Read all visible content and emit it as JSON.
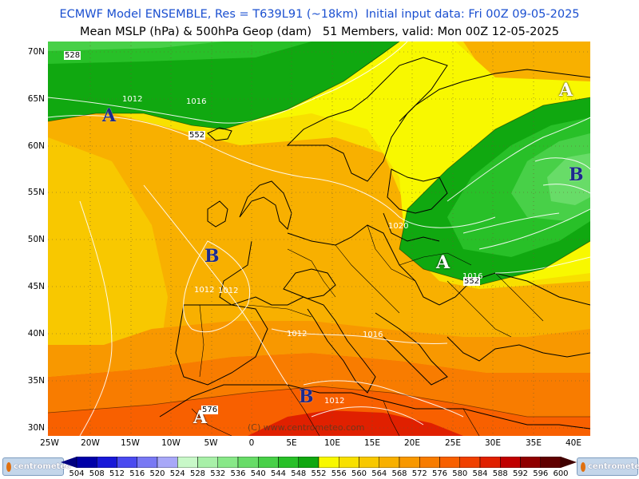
{
  "header": {
    "line1": "ECMWF Model ENSEMBLE, Res = T639L91 (~18km)  Initial input data: Fri 00Z 09-05-2025",
    "line2": "Mean MSLP (hPa) & 500hPa Geop (dam)   51 Members, valid: Mon 00Z 12-05-2025"
  },
  "axes": {
    "lat_labels": [
      "70N",
      "65N",
      "60N",
      "55N",
      "50N",
      "45N",
      "40N",
      "35N",
      "30N"
    ],
    "lon_labels": [
      "25W",
      "20W",
      "15W",
      "10W",
      "5W",
      "0",
      "5E",
      "10E",
      "15E",
      "20E",
      "25E",
      "30E",
      "35E",
      "40E"
    ]
  },
  "pressure_centers": [
    {
      "type": "A",
      "color": "#1c2a8c"
    },
    {
      "type": "A",
      "color": "#ffffff"
    },
    {
      "type": "B",
      "color": "#1c2a8c"
    },
    {
      "type": "A",
      "color": "#ffffff"
    },
    {
      "type": "B",
      "color": "#1c2a8c"
    },
    {
      "type": "A",
      "color": "#ffffff"
    },
    {
      "type": "B",
      "color": "#1c2a8c"
    }
  ],
  "contour_labels": [
    "528",
    "552",
    "552",
    "576",
    "1012",
    "1016",
    "1016",
    "1020",
    "1012",
    "1012",
    "1016",
    "1012",
    "1012"
  ],
  "watermark": "(C) www.centrometeo.com",
  "colorbar": {
    "labels": [
      "504",
      "508",
      "512",
      "516",
      "520",
      "524",
      "528",
      "532",
      "536",
      "540",
      "544",
      "548",
      "552",
      "556",
      "560",
      "564",
      "568",
      "572",
      "576",
      "580",
      "584",
      "588",
      "592",
      "596",
      "600"
    ],
    "colors": [
      "#0000a8",
      "#1818d8",
      "#4a4af0",
      "#7878f4",
      "#a8a8f8",
      "#c8f8c8",
      "#a8f0a8",
      "#88e888",
      "#68dc68",
      "#48d048",
      "#28c028",
      "#10a810",
      "#f8f800",
      "#f8e000",
      "#f8c800",
      "#f8b000",
      "#f89800",
      "#f87c00",
      "#f86000",
      "#f04000",
      "#e02000",
      "#c00000",
      "#900000",
      "#600000"
    ],
    "arrow_left_color": "#000080",
    "arrow_right_color": "#400000"
  },
  "logos": {
    "left": "centrometeo",
    "right": "centrometeo"
  }
}
